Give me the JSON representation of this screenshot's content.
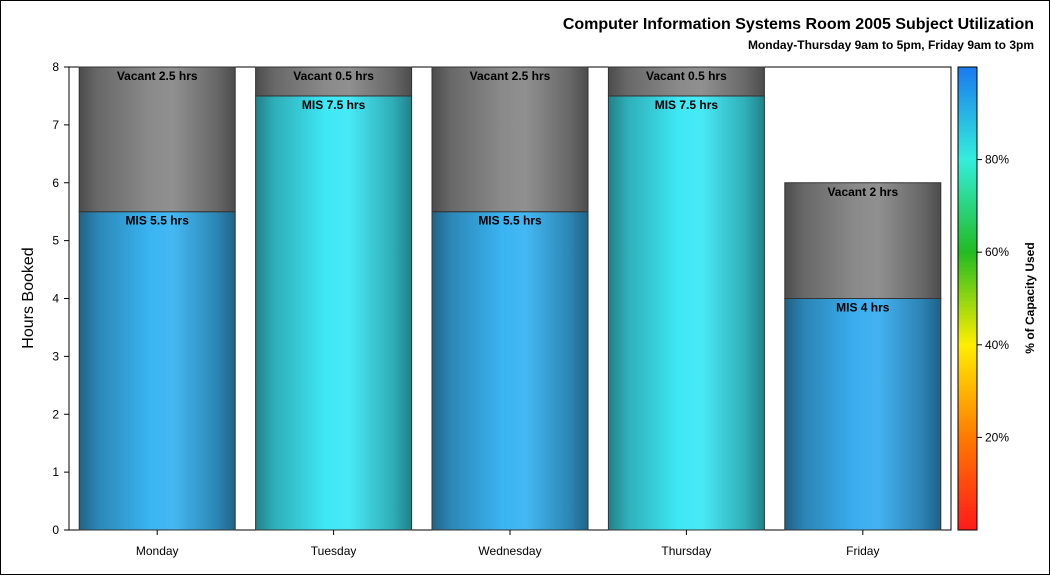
{
  "chart_data": {
    "type": "bar",
    "stacked": true,
    "title": "Computer Information Systems Room 2005 Subject Utilization",
    "subtitle": "Monday-Thursday 9am to 5pm, Friday 9am to 3pm",
    "ylabel": "Hours Booked",
    "xlabel": "",
    "ylim": [
      0,
      8
    ],
    "yticks": [
      "0",
      "1",
      "2",
      "3",
      "4",
      "5",
      "6",
      "7",
      "8"
    ],
    "categories": [
      "Monday",
      "Tuesday",
      "Wednesday",
      "Thursday",
      "Friday"
    ],
    "series": [
      {
        "values": [
          5.5,
          7.5,
          5.5,
          7.5,
          4
        ],
        "labels": [
          "MIS 5.5 hrs",
          "MIS 7.5 hrs",
          "MIS 5.5 hrs",
          "MIS 7.5 hrs",
          "MIS 4 hrs"
        ],
        "colors": [
          "#3ab4f2",
          "#3ee8f5",
          "#3ab4f2",
          "#3ee8f5",
          "#3aaef0"
        ]
      },
      {
        "values": [
          2.5,
          0.5,
          2.5,
          0.5,
          2
        ],
        "labels": [
          "Vacant 2.5 hrs",
          "Vacant 0.5 hrs",
          "Vacant 2.5 hrs",
          "Vacant 0.5 hrs",
          "Vacant 2 hrs"
        ],
        "color": "#8a8a8a"
      }
    ],
    "colorbar": {
      "label": "% of Capacity Used",
      "ticks": [
        "20%",
        "40%",
        "60%",
        "80%"
      ],
      "tick_values": [
        0.2,
        0.4,
        0.6,
        0.8
      ],
      "colors": [
        "#ff1a1a",
        "#ff7a00",
        "#ffee00",
        "#22bb22",
        "#33eedd",
        "#1a7aee"
      ]
    },
    "grid": false,
    "legend": "none"
  }
}
